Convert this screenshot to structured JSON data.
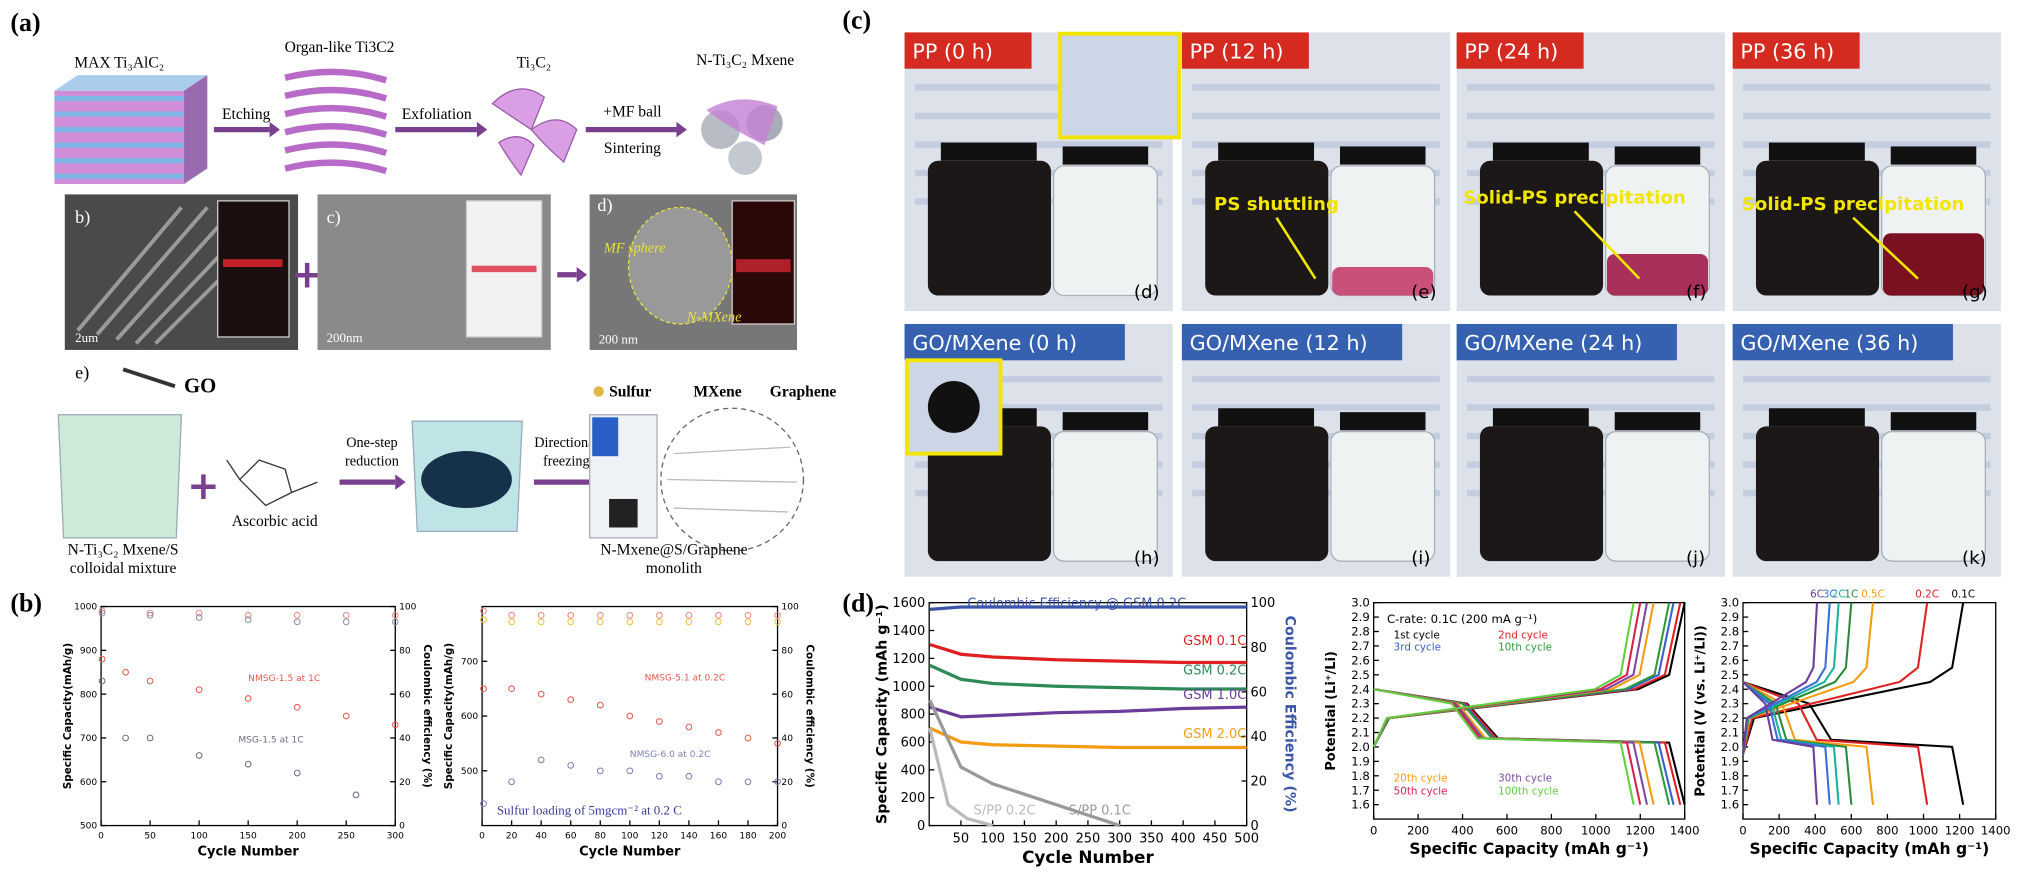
{
  "panel_labels": [
    "(a)",
    "(b)",
    "(c)",
    "(d)"
  ],
  "schematic": {
    "steps": [
      "MAX Ti₃AlC₂",
      "Organ-like Ti3C2",
      "Ti₃C₂",
      "N-Ti₃C₂ Mxene"
    ],
    "arrows": [
      "Etching",
      "Exfoliation",
      "+MF ball",
      "Sintering"
    ]
  },
  "sem": {
    "labels": [
      "b)",
      "c)",
      "d)"
    ],
    "scale_bars": [
      "2um",
      "200nm",
      "200 nm"
    ],
    "annotations": [
      "MF sphere",
      "N-MXene"
    ]
  },
  "process": {
    "label": "e)",
    "go": "GO",
    "legend": [
      "Sulfur",
      "MXene",
      "Graphene"
    ],
    "arrows": [
      "One-step",
      "reduction",
      "Directional",
      "freezing"
    ],
    "reagent": "Ascorbic acid",
    "captions": [
      [
        "N-Ti₃C₂ Mxene/S",
        "colloidal mixture"
      ],
      [
        "N-Mxene@S/Graphene",
        "monolith"
      ]
    ]
  },
  "photos": {
    "pp": [
      "PP (0 h)",
      "PP (12 h)",
      "PP (24 h)",
      "PP (36 h)"
    ],
    "go": [
      "GO/MXene (0 h)",
      "GO/MXene (12 h)",
      "GO/MXene (24 h)",
      "GO/MXene (36 h)"
    ],
    "letters": [
      "(d)",
      "(e)",
      "(f)",
      "(g)",
      "(h)",
      "(i)",
      "(j)",
      "(k)"
    ],
    "annotations": [
      "PS shuttling",
      "Solid-PS precipitation",
      "Solid-PS precipitation"
    ]
  },
  "chart_data": [
    {
      "type": "line",
      "xlabel": "Cycle Number",
      "ylabel": "Specific Capacity(mAh/g)",
      "y2label": "Coulombic efficiency (%)",
      "xlim": [
        0,
        300
      ],
      "ylim": [
        500,
        1000
      ],
      "y2lim": [
        0,
        100
      ],
      "xticks": [
        0,
        50,
        100,
        150,
        200,
        250,
        300
      ],
      "yticks": [
        500,
        600,
        700,
        800,
        900,
        1000
      ],
      "y2ticks": [
        0,
        20,
        40,
        60,
        80,
        100
      ],
      "markers": true,
      "series": [
        {
          "name": "NMSG-1.5 at 1C",
          "color": "#e8584f",
          "x": [
            1,
            25,
            50,
            100,
            150,
            200,
            250,
            300
          ],
          "values": [
            880,
            850,
            830,
            810,
            790,
            770,
            750,
            730
          ]
        },
        {
          "name": "MSG-1.5 at 1C",
          "color": "#6f6a86",
          "x": [
            1,
            25,
            50,
            100,
            150,
            200,
            260
          ],
          "values": [
            830,
            700,
            700,
            660,
            640,
            620,
            570
          ]
        },
        {
          "color": "#f08a80",
          "axis": "y2",
          "x": [
            1,
            50,
            100,
            150,
            200,
            250,
            300
          ],
          "values": [
            98,
            97,
            97,
            96,
            96,
            96,
            96
          ]
        },
        {
          "color": "#8a90b0",
          "axis": "y2",
          "x": [
            1,
            50,
            100,
            150,
            200,
            250,
            300
          ],
          "values": [
            97,
            96,
            95,
            94,
            93,
            93,
            93
          ]
        }
      ]
    },
    {
      "type": "line",
      "xlabel": "Cycle Number",
      "ylabel": "Specific Capacity(mAh/g)",
      "y2label": "Coulombic efficiency (%)",
      "xlim": [
        0,
        200
      ],
      "ylim": [
        400,
        800
      ],
      "y2lim": [
        0,
        100
      ],
      "xticks": [
        0,
        20,
        40,
        60,
        80,
        100,
        120,
        140,
        160,
        180,
        200
      ],
      "yticks": [
        500,
        600,
        700
      ],
      "y2ticks": [
        0,
        20,
        40,
        60,
        80,
        100
      ],
      "markers": true,
      "annotations": [
        "Sulfur loading of 5mgcm⁻² at 0.2 C"
      ],
      "series": [
        {
          "name": "NMSG-5.1 at 0.2C",
          "color": "#e8584f",
          "x": [
            1,
            20,
            40,
            60,
            80,
            100,
            120,
            140,
            160,
            180,
            200
          ],
          "values": [
            650,
            650,
            640,
            630,
            620,
            600,
            590,
            580,
            570,
            560,
            550
          ]
        },
        {
          "name": "NMSG-6.0 at 0.2C",
          "color": "#7a80b8",
          "x": [
            1,
            20,
            40,
            60,
            80,
            100,
            120,
            140,
            160,
            180,
            200
          ],
          "values": [
            440,
            480,
            520,
            510,
            500,
            500,
            490,
            490,
            480,
            480,
            480
          ]
        },
        {
          "color": "#f08a80",
          "axis": "y2",
          "x": [
            1,
            20,
            40,
            60,
            80,
            100,
            120,
            140,
            160,
            180,
            200
          ],
          "values": [
            98,
            96,
            96,
            96,
            96,
            96,
            96,
            96,
            96,
            96,
            96
          ]
        },
        {
          "color": "#f0c040",
          "axis": "y2",
          "x": [
            1,
            20,
            40,
            60,
            80,
            100,
            120,
            140,
            160,
            180,
            200
          ],
          "values": [
            94,
            93,
            93,
            93,
            93,
            93,
            93,
            93,
            93,
            93,
            93
          ]
        }
      ]
    },
    {
      "type": "line",
      "xlabel": "Cycle Number",
      "ylabel": "Specific Capacity (mAh g⁻¹)",
      "y2label": "Coulombic Efficiency (%)",
      "xlim": [
        0,
        500
      ],
      "ylim": [
        0,
        1600
      ],
      "y2lim": [
        0,
        100
      ],
      "xticks": [
        50,
        100,
        150,
        200,
        250,
        300,
        350,
        400,
        450,
        500
      ],
      "yticks": [
        0,
        200,
        400,
        600,
        800,
        1000,
        1200,
        1400,
        1600
      ],
      "y2ticks": [
        0,
        20,
        40,
        60,
        80,
        100
      ],
      "series": [
        {
          "name": "Coulombic Efficiency @ GSM 0.2C",
          "color": "#3b56a8",
          "axis": "y2",
          "x": [
            1,
            50,
            100,
            200,
            300,
            400,
            500
          ],
          "values": [
            97,
            98,
            98,
            98,
            98,
            98,
            98
          ]
        },
        {
          "name": "GSM 0.1C",
          "color": "#e02020",
          "x": [
            1,
            50,
            100,
            200,
            300,
            400,
            500
          ],
          "values": [
            1300,
            1230,
            1210,
            1190,
            1180,
            1170,
            1170
          ]
        },
        {
          "name": "GSM 0.2C",
          "color": "#2e8b57",
          "x": [
            1,
            50,
            100,
            200,
            300,
            400,
            500
          ],
          "values": [
            1150,
            1050,
            1020,
            1000,
            990,
            980,
            980
          ]
        },
        {
          "name": "GSM 1.0C",
          "color": "#6a3d9a",
          "x": [
            1,
            50,
            100,
            200,
            300,
            400,
            500
          ],
          "values": [
            850,
            780,
            790,
            810,
            820,
            840,
            850
          ]
        },
        {
          "name": "GSM 2.0C",
          "color": "#f39c12",
          "x": [
            1,
            50,
            100,
            200,
            300,
            400,
            500
          ],
          "values": [
            700,
            600,
            580,
            570,
            560,
            560,
            560
          ]
        },
        {
          "name": "S/PP 0.1C",
          "color": "#999999",
          "x": [
            1,
            50,
            100,
            200,
            300
          ],
          "values": [
            900,
            420,
            300,
            150,
            0
          ]
        },
        {
          "name": "S/PP 0.2C",
          "color": "#bbbbbb",
          "x": [
            1,
            30,
            60,
            100
          ],
          "values": [
            700,
            150,
            50,
            0
          ]
        }
      ]
    },
    {
      "type": "line",
      "xlabel": "Specific Capacity (mAh g⁻¹)",
      "ylabel": "Potential (Li⁺/Li)",
      "xlim": [
        0,
        1400
      ],
      "ylim": [
        1.5,
        3.0
      ],
      "xticks": [
        0,
        200,
        400,
        600,
        800,
        1000,
        1200,
        1400
      ],
      "yticks": [
        1.6,
        1.7,
        1.8,
        1.9,
        {
          "value": 2,
          "label": "2.0"
        },
        2.1,
        2.2,
        2.3,
        2.4,
        2.5,
        2.6,
        2.7,
        2.8,
        2.9,
        {
          "value": 3,
          "label": "3.0"
        }
      ],
      "annotations": [
        "C-rate: 0.1C (200 mA g⁻¹)"
      ],
      "series": [
        {
          "name": "1st cycle",
          "color": "#000000",
          "x": [
            0,
            420,
            560,
            1330,
            1400,
            null,
            0,
            70,
            1190,
            1330,
            1400
          ],
          "values": [
            2.4,
            2.3,
            2.06,
            2.03,
            1.6,
            null,
            2.0,
            2.2,
            2.4,
            2.5,
            3.0
          ]
        },
        {
          "name": "2nd cycle",
          "color": "#e02020",
          "x": [
            0,
            414,
            552,
            1311,
            1380,
            null,
            0,
            69,
            1173,
            1311,
            1380
          ],
          "values": [
            2.4,
            2.3,
            2.06,
            2.03,
            1.6,
            null,
            2.0,
            2.2,
            2.4,
            2.5,
            3.0
          ]
        },
        {
          "name": "3rd cycle",
          "color": "#3a5fcd",
          "x": [
            0,
            405,
            540,
            1283,
            1350,
            null,
            0,
            68,
            1148,
            1283,
            1350
          ],
          "values": [
            2.4,
            2.3,
            2.06,
            2.03,
            1.6,
            null,
            2.0,
            2.2,
            2.4,
            2.5,
            3.0
          ]
        },
        {
          "name": "10th cycle",
          "color": "#2e9a3a",
          "x": [
            0,
            399,
            532,
            1264,
            1330,
            null,
            0,
            67,
            1131,
            1264,
            1330
          ],
          "values": [
            2.4,
            2.3,
            2.06,
            2.03,
            1.6,
            null,
            2.0,
            2.2,
            2.4,
            2.5,
            3.0
          ]
        },
        {
          "name": "20th cycle",
          "color": "#f39c12",
          "x": [
            0,
            378,
            504,
            1197,
            1260,
            null,
            0,
            63,
            1071,
            1197,
            1260
          ],
          "values": [
            2.4,
            2.3,
            2.06,
            2.03,
            1.6,
            null,
            2.0,
            2.2,
            2.4,
            2.5,
            3.0
          ]
        },
        {
          "name": "30th cycle",
          "color": "#7b4aa0",
          "x": [
            0,
            369,
            492,
            1169,
            1230,
            null,
            0,
            62,
            1046,
            1169,
            1230
          ],
          "values": [
            2.4,
            2.3,
            2.06,
            2.03,
            1.6,
            null,
            2.0,
            2.2,
            2.4,
            2.5,
            3.0
          ]
        },
        {
          "name": "50th cycle",
          "color": "#d6204e",
          "x": [
            0,
            360,
            480,
            1140,
            1200,
            null,
            0,
            60,
            1020,
            1140,
            1200
          ],
          "values": [
            2.4,
            2.3,
            2.06,
            2.03,
            1.6,
            null,
            2.0,
            2.2,
            2.4,
            2.5,
            3.0
          ]
        },
        {
          "name": "100th cycle",
          "color": "#5fcf3f",
          "x": [
            0,
            351,
            468,
            1112,
            1170,
            null,
            0,
            59,
            995,
            1112,
            1170
          ],
          "values": [
            2.4,
            2.3,
            2.06,
            2.03,
            1.6,
            null,
            2.0,
            2.2,
            2.4,
            2.5,
            3.0
          ]
        }
      ]
    },
    {
      "type": "line",
      "xlabel": "Specific Capacity (mAh g⁻¹)",
      "ylabel": "Potential (V (vs. Li⁺/Li))",
      "xlim": [
        0,
        1400
      ],
      "ylim": [
        1.5,
        3.0
      ],
      "xticks": [
        0,
        200,
        400,
        600,
        800,
        1000,
        1200,
        1400
      ],
      "yticks": [
        1.6,
        1.7,
        1.8,
        1.9,
        {
          "value": 2,
          "label": "2.0"
        },
        2.1,
        2.2,
        2.3,
        2.4,
        2.5,
        2.6,
        2.7,
        2.8,
        2.9,
        {
          "value": 3,
          "label": "3.0"
        }
      ],
      "series": [
        {
          "name": "0.1C",
          "color": "#000000",
          "x": [
            0,
            366,
            488,
            1159,
            1220,
            null,
            0,
            61,
            1037,
            1159,
            1220
          ],
          "values": [
            2.45,
            2.3,
            2.05,
            2.0,
            1.6,
            null,
            1.95,
            2.2,
            2.45,
            2.55,
            3.0
          ]
        },
        {
          "name": "0.2C",
          "color": "#e02020",
          "x": [
            0,
            306,
            408,
            969,
            1020,
            null,
            0,
            51,
            867,
            969,
            1020
          ],
          "values": [
            2.45,
            2.3,
            2.05,
            2.0,
            1.6,
            null,
            1.95,
            2.2,
            2.45,
            2.55,
            3.0
          ]
        },
        {
          "name": "0.5C",
          "color": "#f39c12",
          "x": [
            0,
            216,
            288,
            684,
            720,
            null,
            0,
            36,
            612,
            684,
            720
          ],
          "values": [
            2.45,
            2.3,
            2.05,
            2.0,
            1.6,
            null,
            1.95,
            2.2,
            2.45,
            2.55,
            3.0
          ]
        },
        {
          "name": "1C",
          "color": "#2a8a3a",
          "x": [
            0,
            180,
            240,
            570,
            600,
            null,
            0,
            30,
            510,
            570,
            600
          ],
          "values": [
            2.45,
            2.3,
            2.05,
            2.0,
            1.6,
            null,
            1.95,
            2.2,
            2.45,
            2.55,
            3.0
          ]
        },
        {
          "name": "2C",
          "color": "#17b3a3",
          "x": [
            0,
            159,
            212,
            504,
            530,
            null,
            0,
            27,
            451,
            504,
            530
          ],
          "values": [
            2.45,
            2.3,
            2.05,
            2.0,
            1.6,
            null,
            1.95,
            2.2,
            2.45,
            2.55,
            3.0
          ]
        },
        {
          "name": "3C",
          "color": "#3a6fd8",
          "x": [
            0,
            144,
            192,
            456,
            480,
            null,
            0,
            24,
            408,
            456,
            480
          ],
          "values": [
            2.45,
            2.3,
            2.05,
            2.0,
            1.6,
            null,
            1.95,
            2.2,
            2.45,
            2.55,
            3.0
          ]
        },
        {
          "name": "6C",
          "color": "#6a3d9a",
          "x": [
            0,
            123,
            164,
            390,
            410,
            null,
            0,
            21,
            349,
            390,
            410
          ],
          "values": [
            2.45,
            2.3,
            2.05,
            2.0,
            1.6,
            null,
            1.95,
            2.2,
            2.45,
            2.55,
            3.0
          ]
        }
      ]
    }
  ]
}
